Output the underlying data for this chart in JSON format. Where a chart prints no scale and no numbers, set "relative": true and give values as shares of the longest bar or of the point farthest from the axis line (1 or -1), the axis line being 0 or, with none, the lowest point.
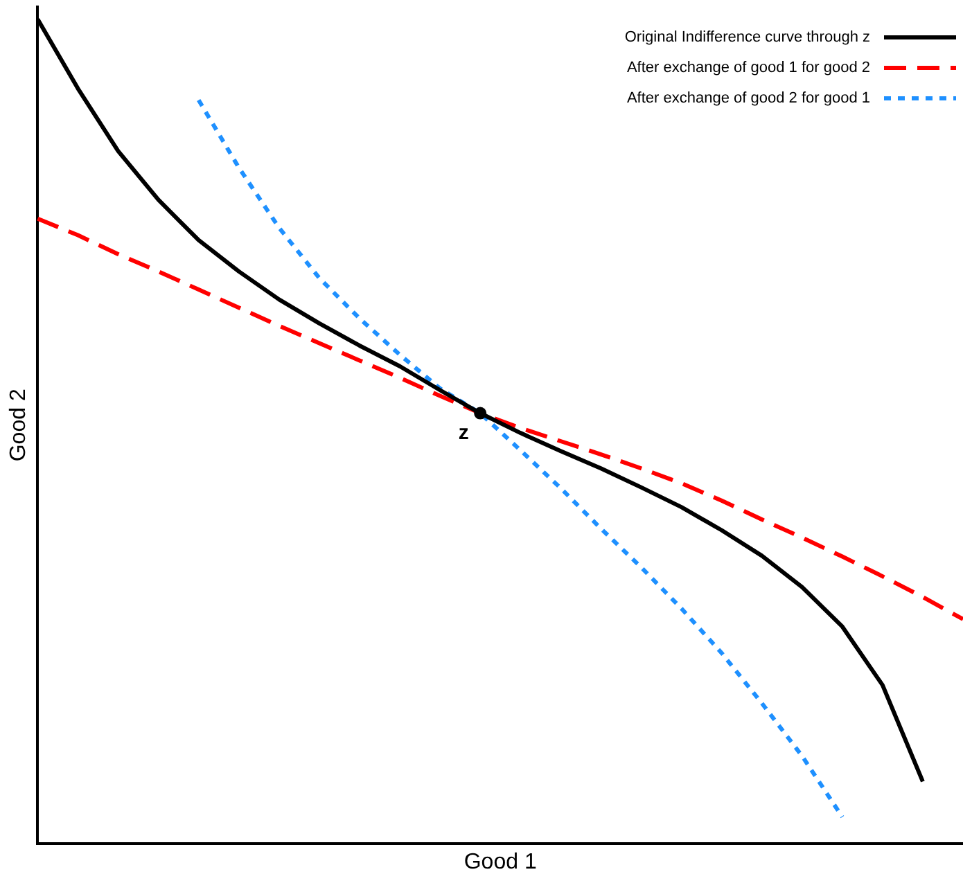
{
  "chart_data": {
    "type": "line",
    "relative": true,
    "xlabel": "Good 1",
    "ylabel": "Good 2",
    "legend": "top right",
    "grid": false,
    "marker": "none",
    "categories": [
      null,
      null,
      null,
      null,
      null,
      null,
      null,
      null,
      null,
      null,
      null,
      null,
      null,
      null,
      null,
      null,
      null,
      null,
      null,
      null,
      null,
      null,
      null,
      null
    ],
    "series": [
      {
        "name": "Original Indifference curve through z",
        "color": "#000000",
        "line_style": "solid",
        "values": [
          1.0,
          0.916,
          0.84,
          0.781,
          0.732,
          0.694,
          0.66,
          0.631,
          0.604,
          0.579,
          0.55,
          0.522,
          0.498,
          0.476,
          0.455,
          0.432,
          0.408,
          0.38,
          0.349,
          0.311,
          0.263,
          0.192,
          0.075,
          null
        ]
      },
      {
        "name": "After exchange of good 1 for good 2",
        "color": "#ff0000",
        "line_style": "dashed",
        "values": [
          0.758,
          0.738,
          0.715,
          0.694,
          0.672,
          0.65,
          0.628,
          0.607,
          0.586,
          0.565,
          0.543,
          0.522,
          0.504,
          0.488,
          0.472,
          0.455,
          0.437,
          0.416,
          0.393,
          0.371,
          0.348,
          0.324,
          0.299,
          0.272
        ]
      },
      {
        "name": "After exchange of good 2 for good 1",
        "color": "#1e90ff",
        "line_style": "dotted",
        "values": [
          null,
          null,
          null,
          null,
          0.902,
          0.82,
          0.747,
          0.686,
          0.637,
          0.593,
          0.552,
          0.522,
          0.477,
          0.431,
          0.382,
          0.335,
          0.285,
          0.231,
          0.17,
          0.106,
          0.032,
          null,
          null,
          null
        ]
      }
    ],
    "annotations": [
      {
        "text": "z",
        "y": 0.522
      }
    ]
  }
}
